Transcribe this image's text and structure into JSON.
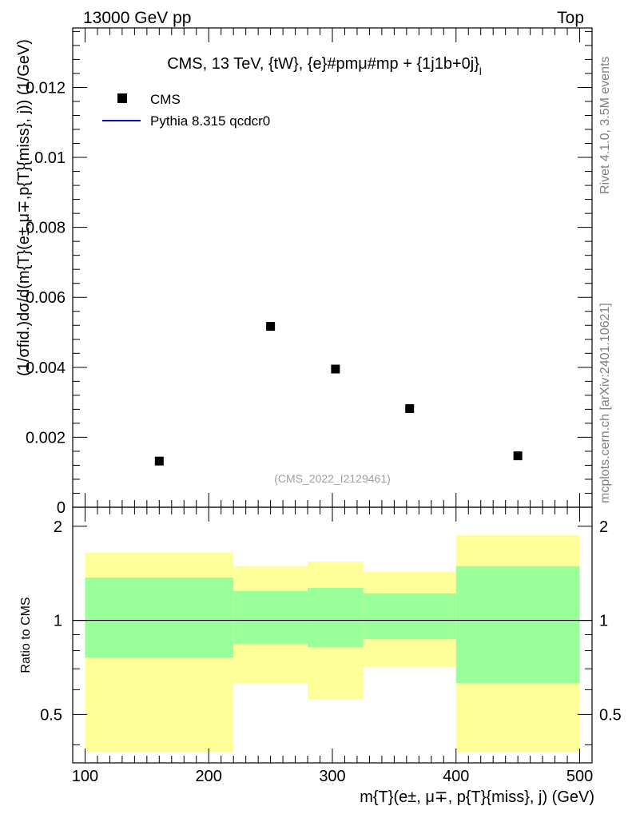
{
  "header": {
    "left": "13000 GeV pp",
    "right": "Top"
  },
  "side_labels": {
    "rivet": "Rivet 4.1.0,  3.5M events",
    "mcplots": "mcplots.cern.ch [arXiv:2401.10621]"
  },
  "colors": {
    "mc_line": "#0000cc",
    "band_inner": "#99ff99",
    "band_outer": "#ffff99",
    "data_marker": "#000000",
    "watermark": "#a0a0a0"
  },
  "chart_data": [
    {
      "type": "scatter",
      "title": "CMS, 13 TeV, {tW}, {e}#pmμ#mp + {1j1b+0j}",
      "title_sub": "l",
      "watermark": "(CMS_2022_I2129461)",
      "ylabel": "(1/σfid.)dσ/d(m{T}(e±,μ∓,p{T}{miss}, j)) (1/GeV)",
      "ylim": [
        0,
        0.0137
      ],
      "yticks": [
        0,
        0.002,
        0.004,
        0.006,
        0.008,
        0.01,
        0.012
      ],
      "ytick_labels": [
        "0",
        "0.002",
        "0.004",
        "0.006",
        "0.008",
        "0.01",
        "0.012"
      ],
      "xlim": [
        90,
        510
      ],
      "legend": {
        "position": "top-left",
        "entries": [
          "CMS",
          "Pythia 8.315 qcdcr0"
        ]
      },
      "series": [
        {
          "name": "CMS",
          "x": [
            160,
            250,
            302.5,
            362.5,
            450
          ],
          "y": [
            0.00132,
            0.00517,
            0.00395,
            0.00282,
            0.00147
          ]
        }
      ]
    },
    {
      "type": "area",
      "ylabel": "Ratio to CMS",
      "xlabel": "m{T}(e±, μ∓, p{T}{miss}, j) (GeV)",
      "xlim": [
        90,
        510
      ],
      "xticks": [
        100,
        200,
        300,
        400,
        500
      ],
      "xtick_labels": [
        "100",
        "200",
        "300",
        "400",
        "500"
      ],
      "ylim": [
        0.35,
        2.3
      ],
      "yticks": [
        0.5,
        1,
        2
      ],
      "ytick_labels": [
        "0.5",
        "1",
        "2"
      ],
      "reference_line": 1,
      "bins": [
        {
          "lo": 100,
          "hi": 220,
          "inner": [
            0.76,
            1.37
          ],
          "outer": [
            0.38,
            1.65
          ]
        },
        {
          "lo": 220,
          "hi": 280,
          "inner": [
            0.84,
            1.24
          ],
          "outer": [
            0.63,
            1.49
          ]
        },
        {
          "lo": 280,
          "hi": 325,
          "inner": [
            0.82,
            1.27
          ],
          "outer": [
            0.56,
            1.54
          ]
        },
        {
          "lo": 325,
          "hi": 400,
          "inner": [
            0.87,
            1.22
          ],
          "outer": [
            0.71,
            1.43
          ]
        },
        {
          "lo": 400,
          "hi": 500,
          "inner": [
            0.63,
            1.49
          ],
          "outer": [
            0.38,
            1.87
          ]
        }
      ]
    }
  ]
}
